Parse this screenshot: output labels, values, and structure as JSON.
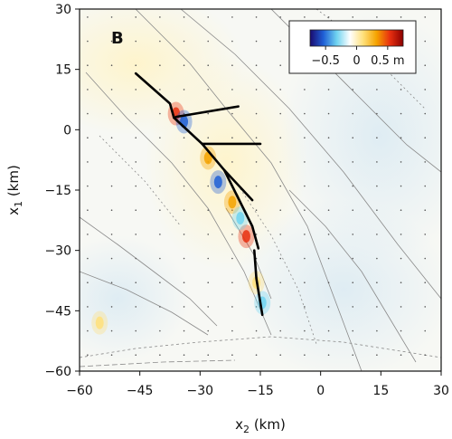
{
  "chart_data": {
    "type": "heatmap",
    "panel_label": "B",
    "xlabel_main": "x",
    "xlabel_sub": "2",
    "xlabel_unit": " (km)",
    "ylabel_main": "x",
    "ylabel_sub": "1",
    "ylabel_unit": " (km)",
    "xlim": [
      -60,
      30
    ],
    "ylim": [
      -60,
      30
    ],
    "xticks": [
      "-60",
      "-45",
      "-30",
      "-15",
      "0",
      "15",
      "30"
    ],
    "xtick_values": [
      -60,
      -45,
      -30,
      -15,
      0,
      15,
      30
    ],
    "yticks": [
      "30",
      "15",
      "0",
      "-15",
      "-30",
      "-45",
      "-60"
    ],
    "ytick_values": [
      30,
      15,
      0,
      -15,
      -30,
      -45,
      -60
    ],
    "colorbar": {
      "tick_labels": [
        "−0.5",
        "0",
        "0.5 m"
      ],
      "tick_values": [
        -0.5,
        0,
        0.5
      ],
      "range": [
        -0.75,
        0.75
      ],
      "colors": [
        "#1a0a6e",
        "#1f5fd6",
        "#6fd3f0",
        "#ffffff",
        "#ffe07a",
        "#f5a300",
        "#e83010",
        "#8a0000"
      ]
    },
    "grid": false,
    "rupture_traces": [
      [
        [
          -46,
          14
        ],
        [
          -37.5,
          6.5
        ],
        [
          -36.5,
          3
        ]
      ],
      [
        [
          -36.5,
          3
        ],
        [
          -29.5,
          -3.5
        ],
        [
          -15,
          -3.5
        ]
      ],
      [
        [
          -36,
          3.2
        ],
        [
          -20.5,
          5.8
        ]
      ],
      [
        [
          -29.5,
          -3.5
        ],
        [
          -24,
          -10
        ],
        [
          -17,
          -17.5
        ]
      ],
      [
        [
          -24,
          -10
        ],
        [
          -17,
          -24
        ],
        [
          -15.5,
          -29.5
        ]
      ],
      [
        [
          -16.5,
          -30
        ],
        [
          -16,
          -37
        ],
        [
          -14.5,
          -46
        ]
      ]
    ],
    "slip_hotspots": [
      {
        "x": -36,
        "y": 4,
        "value": 0.55
      },
      {
        "x": -34,
        "y": 2,
        "value": -0.6
      },
      {
        "x": -28,
        "y": -7,
        "value": 0.4
      },
      {
        "x": -25.5,
        "y": -13,
        "value": -0.45
      },
      {
        "x": -22,
        "y": -18,
        "value": 0.3
      },
      {
        "x": -18.5,
        "y": -26.5,
        "value": 0.45
      },
      {
        "x": -20,
        "y": -22,
        "value": -0.35
      },
      {
        "x": -16,
        "y": -38,
        "value": 0.2
      },
      {
        "x": -14.5,
        "y": -43,
        "value": -0.3
      },
      {
        "x": -55,
        "y": -48,
        "value": 0.15
      }
    ]
  }
}
